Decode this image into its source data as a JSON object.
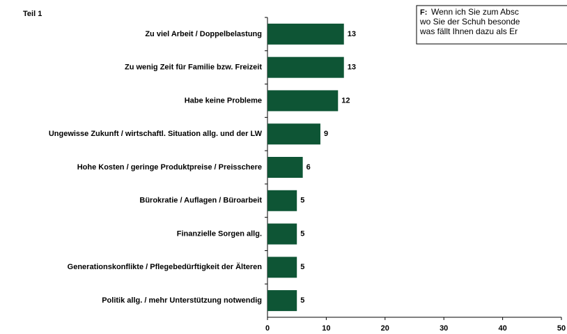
{
  "chart_data": {
    "type": "bar",
    "orientation": "horizontal",
    "title": "Teil 1",
    "annotation": {
      "label": "F:",
      "lines": [
        "Wenn ich Sie zum Absc",
        "wo Sie der Schuh besonde",
        "was fällt Ihnen dazu als Er"
      ]
    },
    "categories": [
      "Zu viel Arbeit / Doppelbelastung",
      "Zu wenig Zeit für Familie bzw. Freizeit",
      "Habe keine Probleme",
      "Ungewisse Zukunft / wirtschaftl. Situation allg. und der LW",
      "Hohe Kosten / geringe Produktpreise / Preisschere",
      "Bürokratie / Auflagen / Büroarbeit",
      "Finanzielle Sorgen allg.",
      "Generationskonflikte / Pflegebedürftigkeit der Älteren",
      "Politik allg. / mehr Unterstützung notwendig"
    ],
    "values": [
      13,
      13,
      12,
      9,
      6,
      5,
      5,
      5,
      5
    ],
    "color": "#0e5535",
    "xlim": [
      0,
      50
    ],
    "xticks": [
      0,
      10,
      20,
      30,
      40,
      50
    ],
    "grid": false
  }
}
